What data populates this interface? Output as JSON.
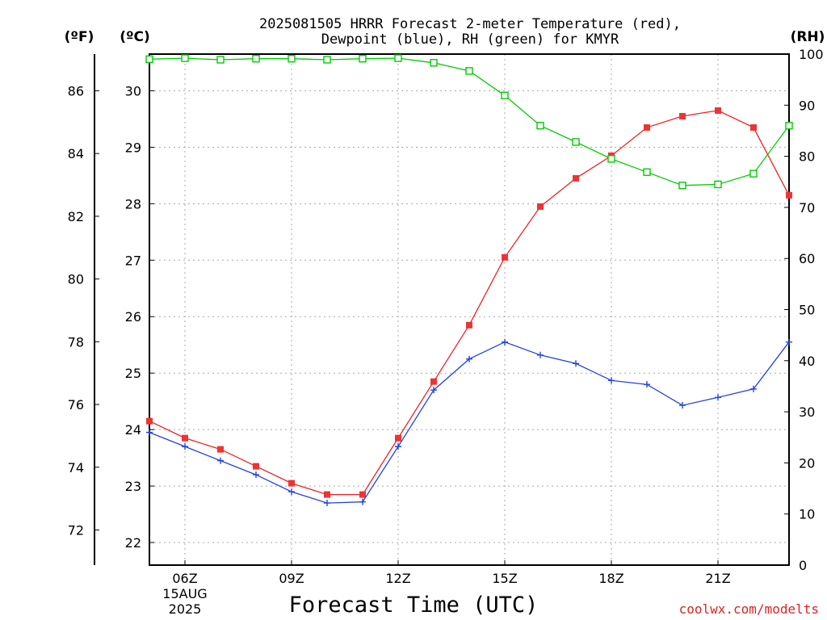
{
  "colors": {
    "temperature": "#ee2222",
    "temperature_marker": "#ee3333",
    "dewpoint": "#2244dd",
    "rh": "#00cc00",
    "credit": "#dd2222"
  },
  "chart_data": {
    "type": "line",
    "title_line1": "2025081505 HRRR Forecast 2-meter Temperature (red),",
    "title_line2": "Dewpoint (blue), RH (green) for KMYR",
    "xlabel": "Forecast Time (UTC)",
    "credit": "coolwx.com/modelts",
    "unit_labels": {
      "fahrenheit": "(ºF)",
      "celsius": "(ºC)",
      "rh": "(RH)"
    },
    "x_hours": [
      5,
      6,
      7,
      8,
      9,
      10,
      11,
      12,
      13,
      14,
      15,
      16,
      17,
      18,
      19,
      20,
      21,
      22,
      23
    ],
    "x_ticks": [
      {
        "hour": 6,
        "label": "06Z",
        "date_label": "15AUG",
        "year_label": "2025"
      },
      {
        "hour": 9,
        "label": "09Z"
      },
      {
        "hour": 12,
        "label": "12Z"
      },
      {
        "hour": 15,
        "label": "15Z"
      },
      {
        "hour": 18,
        "label": "18Z"
      },
      {
        "hour": 21,
        "label": "21Z"
      }
    ],
    "celsius_range": [
      21.6,
      30.65
    ],
    "celsius_ticks": [
      "22",
      "23",
      "24",
      "25",
      "26",
      "27",
      "28",
      "29",
      "30"
    ],
    "fahrenheit_ticks": [
      "72",
      "74",
      "76",
      "78",
      "80",
      "82",
      "84",
      "86"
    ],
    "rh_range": [
      0,
      100
    ],
    "rh_ticks": [
      "0",
      "10",
      "20",
      "30",
      "40",
      "50",
      "60",
      "70",
      "80",
      "90",
      "100"
    ],
    "grid": true,
    "series": [
      {
        "key": "temperature",
        "unit": "C",
        "marker": "filled-square",
        "values": [
          24.15,
          23.85,
          23.65,
          23.35,
          23.05,
          22.85,
          22.85,
          23.85,
          24.85,
          25.85,
          27.05,
          27.95,
          28.45,
          28.85,
          29.35,
          29.55,
          29.65,
          29.35,
          28.15
        ]
      },
      {
        "key": "dewpoint",
        "unit": "C",
        "marker": "plus",
        "values": [
          23.95,
          23.7,
          23.45,
          23.2,
          22.9,
          22.7,
          22.72,
          23.7,
          24.7,
          25.25,
          25.55,
          25.32,
          25.17,
          24.87,
          24.8,
          24.43,
          24.57,
          24.72,
          25.55
        ]
      },
      {
        "key": "rh",
        "unit": "%",
        "marker": "open-square",
        "values": [
          99,
          99.2,
          98.9,
          99.1,
          99.1,
          98.9,
          99.1,
          99.2,
          98.3,
          96.7,
          91.9,
          86,
          82.8,
          79.5,
          76.9,
          74.3,
          74.5,
          76.6,
          86
        ]
      }
    ]
  }
}
